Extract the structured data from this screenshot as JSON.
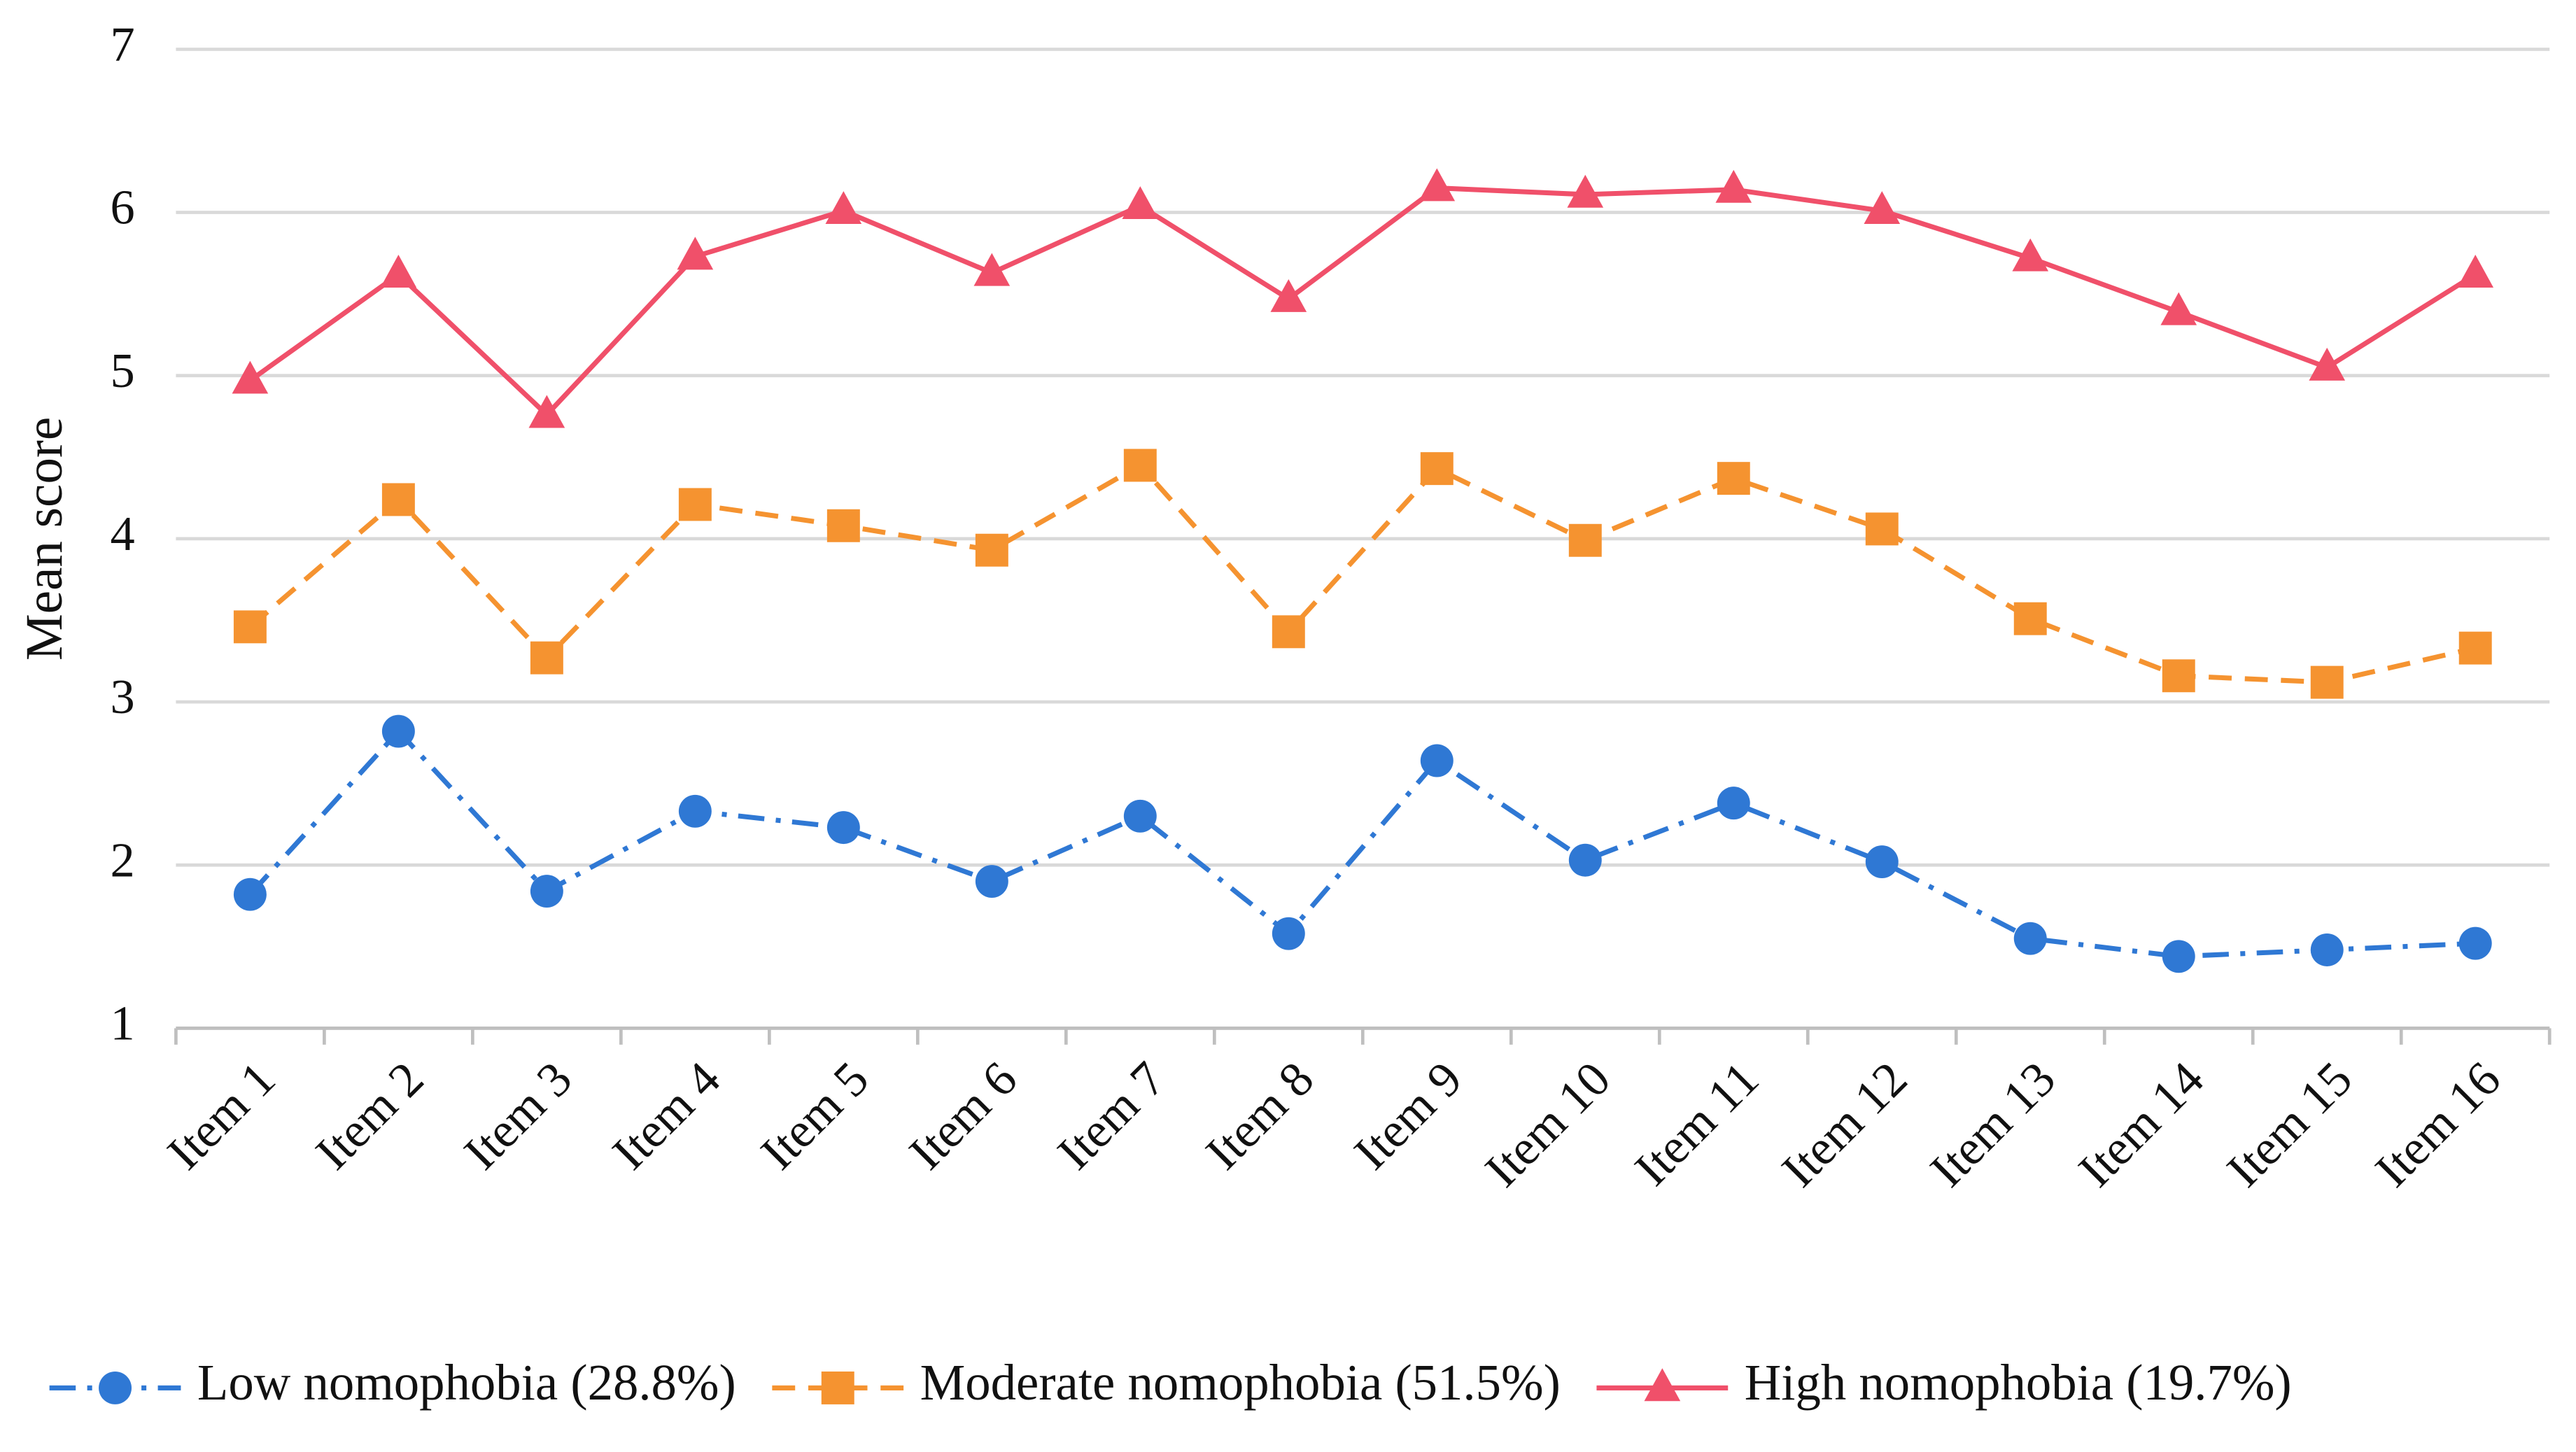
{
  "chart_data": {
    "type": "line",
    "y_label": "Mean score",
    "categories": [
      "Item 1",
      "Item 2",
      "Item 3",
      "Item 4",
      "Item 5",
      "Item 6",
      "Item 7",
      "Item 8",
      "Item 9",
      "Item 10",
      "Item 11",
      "Item 12",
      "Item 13",
      "Item 14",
      "Item 15",
      "Item 16"
    ],
    "ylim": [
      1,
      7
    ],
    "yticks": [
      1,
      2,
      3,
      4,
      5,
      6,
      7
    ],
    "grid": true,
    "legend": "bottom",
    "series": [
      {
        "name": "Low nomophobia (28.8%)",
        "color": "#2f78d4",
        "dash": "dashdot",
        "marker": "circle",
        "values": [
          1.82,
          2.82,
          1.84,
          2.33,
          2.23,
          1.9,
          2.3,
          1.58,
          2.64,
          2.03,
          2.38,
          2.02,
          1.55,
          1.44,
          1.48,
          1.52
        ]
      },
      {
        "name": "Moderate nomophobia (51.5%)",
        "color": "#f59330",
        "dash": "dashed",
        "marker": "square",
        "values": [
          3.46,
          4.24,
          3.27,
          4.21,
          4.08,
          3.93,
          4.45,
          3.43,
          4.43,
          3.99,
          4.37,
          4.06,
          3.51,
          3.16,
          3.12,
          3.33
        ]
      },
      {
        "name": "High nomophobia (19.7%)",
        "color": "#f0506a",
        "dash": "solid",
        "marker": "triangle",
        "values": [
          4.97,
          5.62,
          4.76,
          5.73,
          6.01,
          5.63,
          6.04,
          5.47,
          6.15,
          6.11,
          6.14,
          6.01,
          5.72,
          5.39,
          5.05,
          5.62
        ]
      }
    ]
  }
}
